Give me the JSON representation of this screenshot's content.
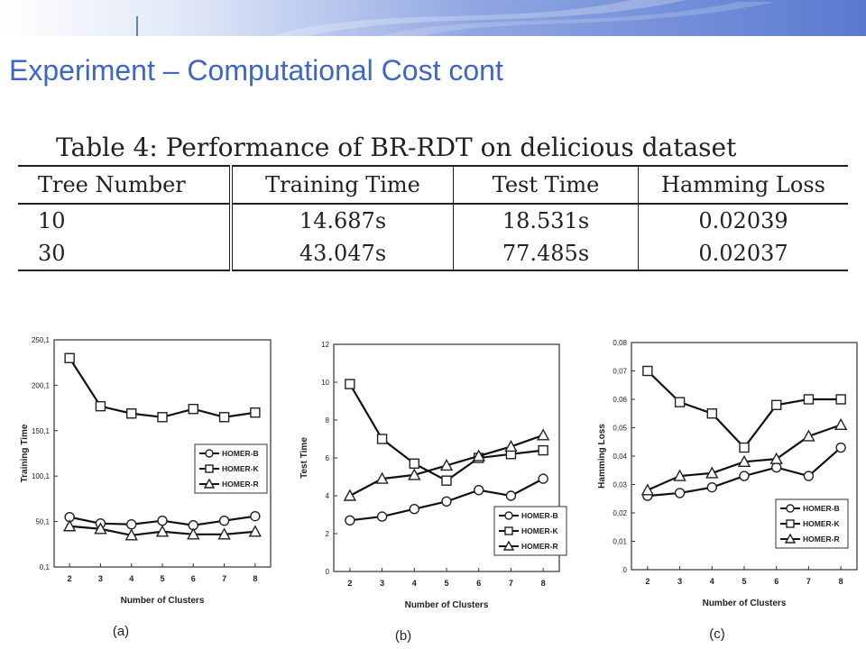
{
  "slide": {
    "title": "Experiment – Computational Cost cont",
    "banner_color": "#5a7ad0"
  },
  "table": {
    "caption": "Table 4: Performance of BR-RDT on delicious dataset",
    "headers": [
      "Tree Number",
      "Training Time",
      "Test Time",
      "Hamming Loss"
    ],
    "rows": [
      [
        "10",
        "14.687s",
        "18.531s",
        "0.02039"
      ],
      [
        "30",
        "43.047s",
        "77.485s",
        "0.02037"
      ]
    ]
  },
  "chart_data": [
    {
      "type": "line",
      "panel_label": "(a)",
      "xlabel": "Number of Clusters",
      "ylabel": "Training Time",
      "x": [
        2,
        3,
        4,
        5,
        6,
        7,
        8
      ],
      "xlim": [
        1.5,
        8.5
      ],
      "ylim": [
        0.1,
        250.1
      ],
      "yticks": [
        "0,1",
        "50,1",
        "100,1",
        "150,1",
        "200,1",
        "250,1"
      ],
      "grid": false,
      "legend_position": "center-right",
      "series": [
        {
          "name": "HOMER-B",
          "marker": "circle",
          "values": [
            55,
            48,
            47,
            51,
            46,
            51,
            56
          ]
        },
        {
          "name": "HOMER-K",
          "marker": "square",
          "values": [
            230,
            177,
            169,
            165,
            174,
            165,
            170
          ]
        },
        {
          "name": "HOMER-R",
          "marker": "triangle",
          "values": [
            45,
            42,
            35,
            39,
            36,
            36,
            39
          ]
        }
      ]
    },
    {
      "type": "line",
      "panel_label": "(b)",
      "xlabel": "Number of Clusters",
      "ylabel": "Test Time",
      "x": [
        2,
        3,
        4,
        5,
        6,
        7,
        8
      ],
      "xlim": [
        1.5,
        8.5
      ],
      "ylim": [
        0,
        12
      ],
      "yticks": [
        "0",
        "2",
        "4",
        "6",
        "8",
        "10",
        "12"
      ],
      "grid": false,
      "legend_position": "bottom-right",
      "series": [
        {
          "name": "HOMER-B",
          "marker": "circle",
          "values": [
            2.7,
            2.9,
            3.3,
            3.7,
            4.3,
            4.0,
            4.9
          ]
        },
        {
          "name": "HOMER-K",
          "marker": "square",
          "values": [
            9.9,
            7.0,
            5.7,
            4.8,
            6.0,
            6.2,
            6.4
          ]
        },
        {
          "name": "HOMER-R",
          "marker": "triangle",
          "values": [
            4.0,
            4.9,
            5.1,
            5.6,
            6.1,
            6.6,
            7.2
          ]
        }
      ]
    },
    {
      "type": "line",
      "panel_label": "(c)",
      "xlabel": "Number of Clusters",
      "ylabel": "Hamming Loss",
      "x": [
        2,
        3,
        4,
        5,
        6,
        7,
        8
      ],
      "xlim": [
        1.5,
        8.5
      ],
      "ylim": [
        0,
        0.08
      ],
      "yticks": [
        "0",
        "0,01",
        "0,02",
        "0,03",
        "0,04",
        "0,05",
        "0,06",
        "0,07",
        "0,08"
      ],
      "grid": false,
      "legend_position": "bottom-right",
      "series": [
        {
          "name": "HOMER-B",
          "marker": "circle",
          "values": [
            0.026,
            0.027,
            0.029,
            0.033,
            0.036,
            0.033,
            0.043
          ]
        },
        {
          "name": "HOMER-K",
          "marker": "square",
          "values": [
            0.07,
            0.059,
            0.055,
            0.043,
            0.058,
            0.06,
            0.06
          ]
        },
        {
          "name": "HOMER-R",
          "marker": "triangle",
          "values": [
            0.028,
            0.033,
            0.034,
            0.038,
            0.039,
            0.047,
            0.051
          ]
        }
      ]
    }
  ]
}
